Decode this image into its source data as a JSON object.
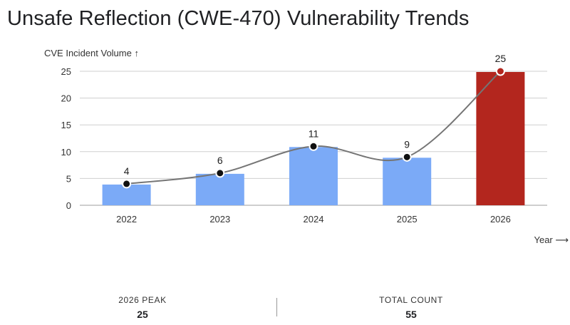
{
  "title": "Unsafe Reflection (CWE-470) Vulnerability Trends",
  "chart_data": {
    "type": "bar",
    "categories": [
      "2022",
      "2023",
      "2024",
      "2025",
      "2026"
    ],
    "values": [
      4,
      6,
      11,
      9,
      25
    ],
    "ylabel": "CVE Incident Volume ↑",
    "xlabel": "Year ⟶",
    "ylim": [
      0,
      25
    ],
    "yticks": [
      0,
      5,
      10,
      15,
      20,
      25
    ],
    "grid": true,
    "overlay": "smoothed trend line with point markers",
    "colors": {
      "bar": "#7baaf7",
      "highlight": "#b3261e",
      "line": "#757575",
      "marker": "#111111"
    }
  },
  "stats": [
    {
      "label": "2026 PEAK",
      "value": "25"
    },
    {
      "label": "TOTAL COUNT",
      "value": "55"
    }
  ]
}
